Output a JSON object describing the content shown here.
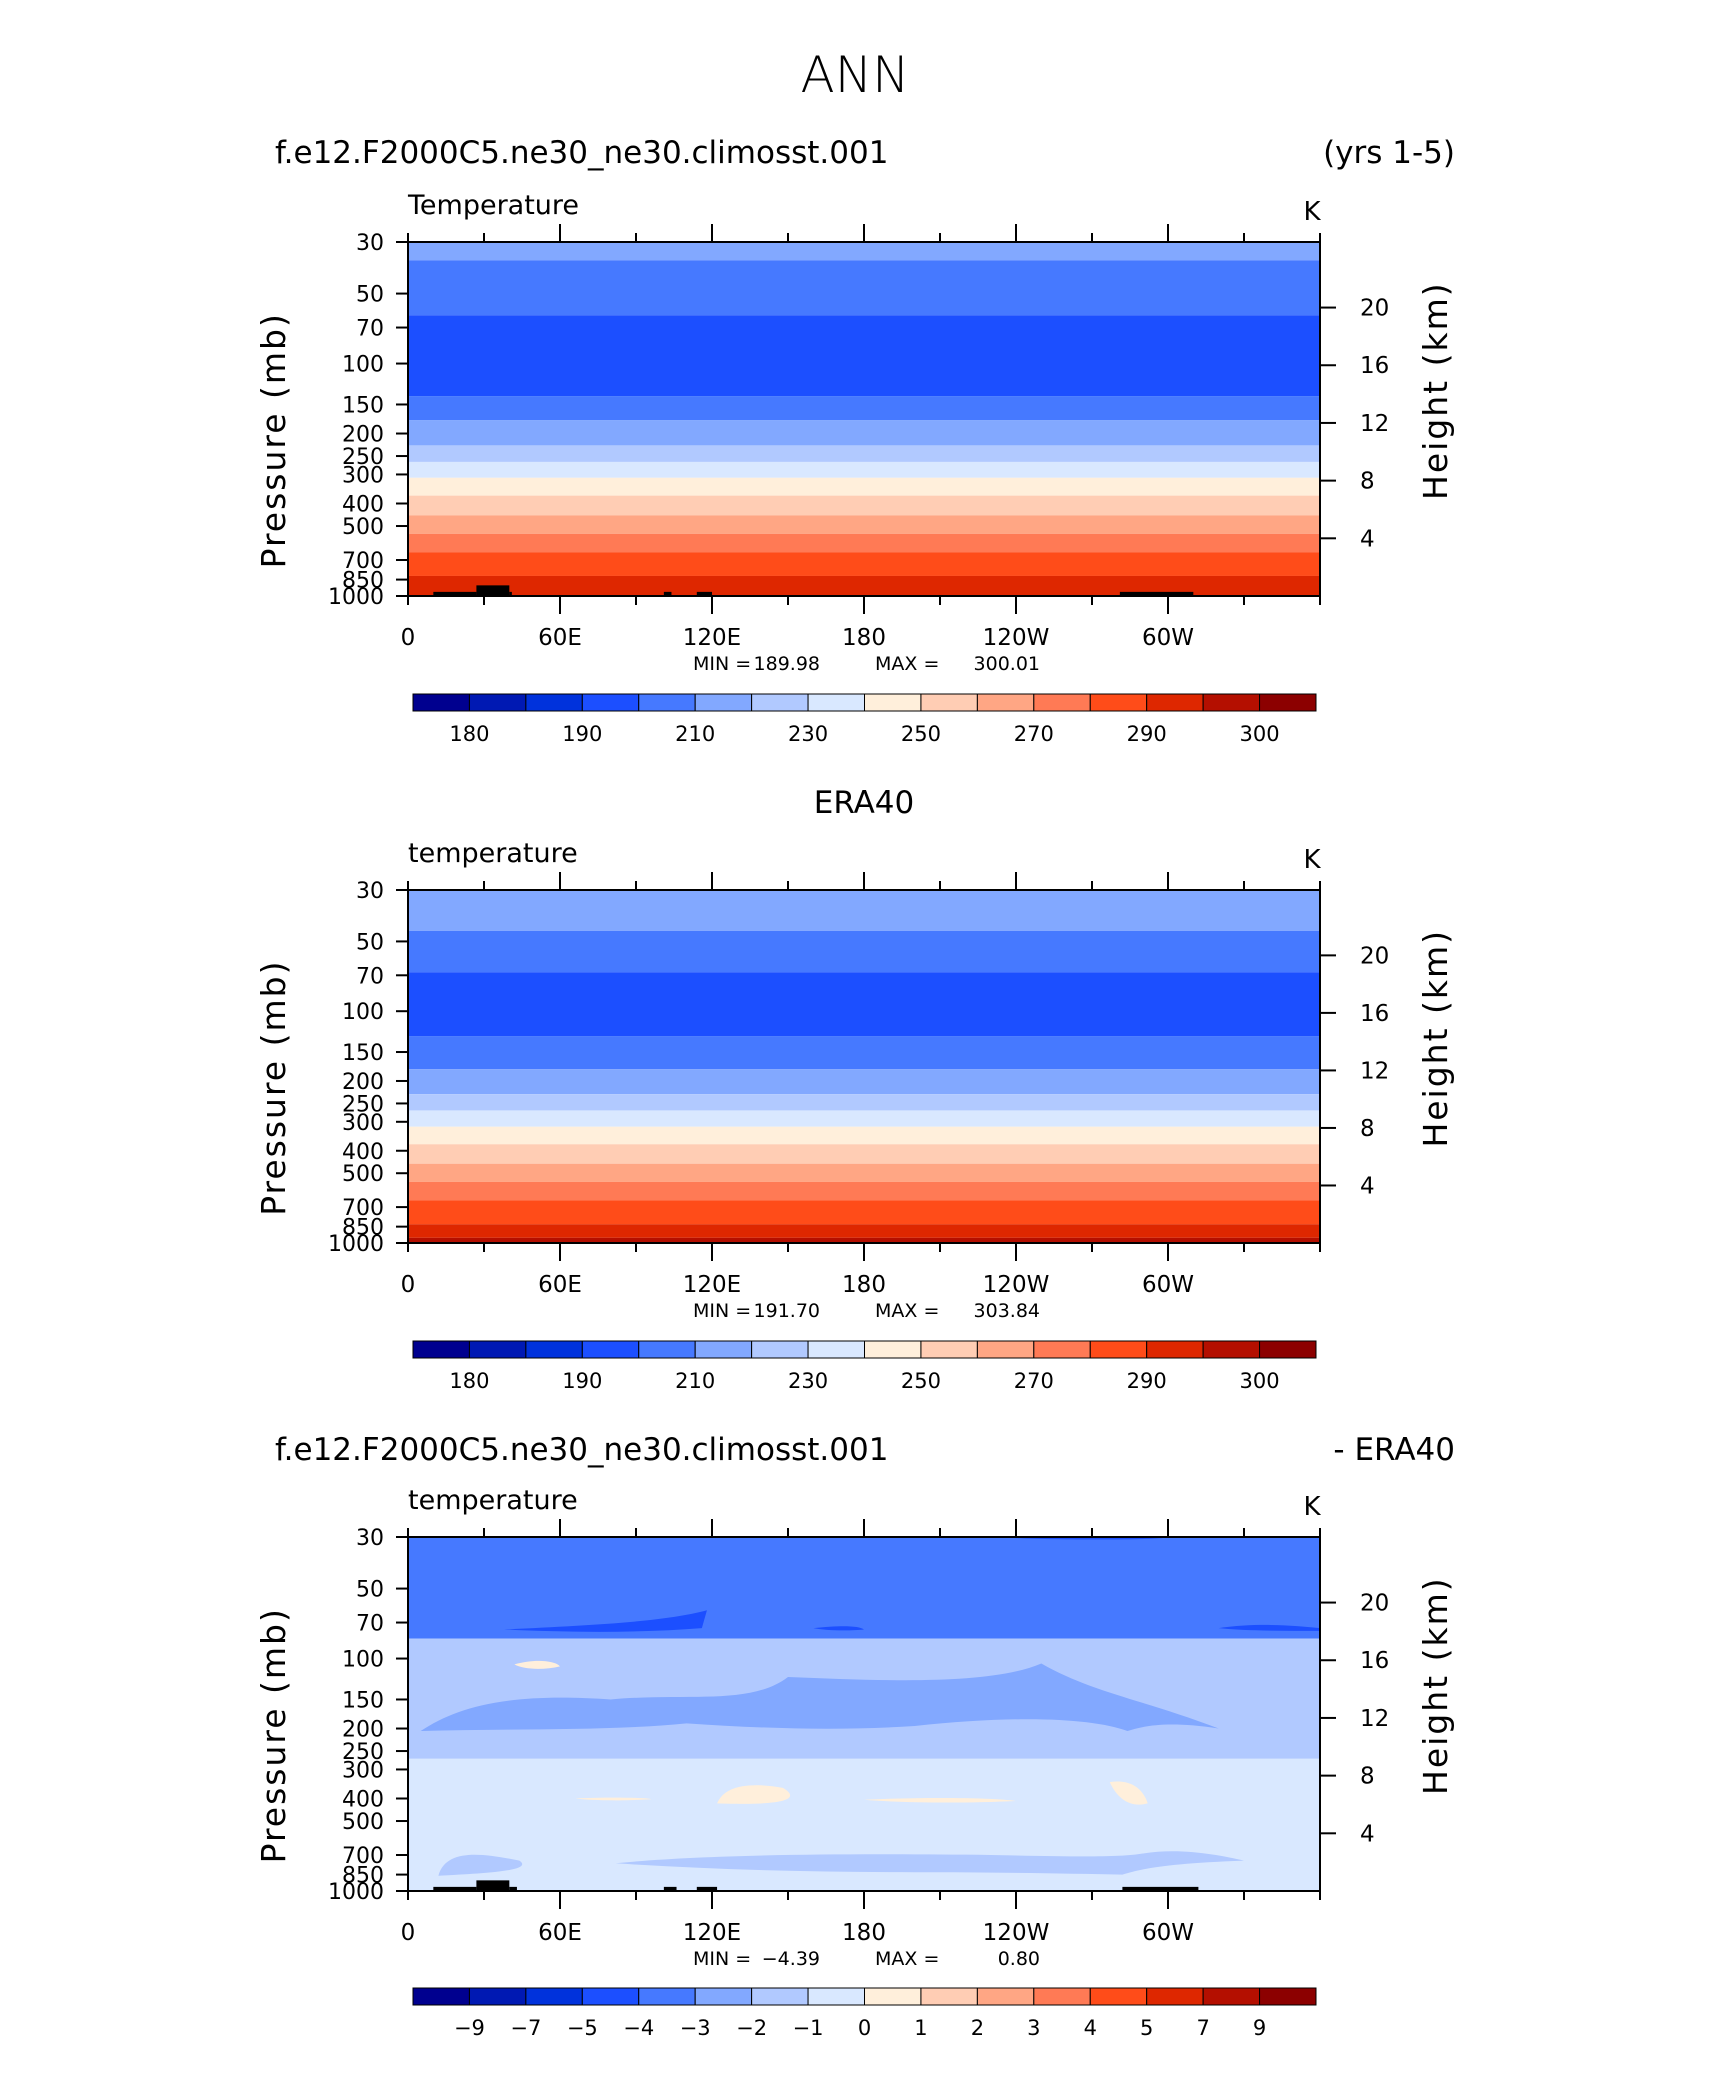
{
  "figure_title": "ANN",
  "colors": {
    "temp_levels": [
      "#00008f",
      "#0019b3",
      "#0032dc",
      "#1c4fff",
      "#4679ff",
      "#82a8ff",
      "#b1c9ff",
      "#d9e8ff",
      "#ffefdb",
      "#ffcdb4",
      "#ffa684",
      "#ff7a55",
      "#ff4c19",
      "#de2700",
      "#b40f00",
      "#8c0000"
    ],
    "diff_levels": [
      "#00008f",
      "#0019b3",
      "#0032dc",
      "#1c4fff",
      "#4679ff",
      "#82a8ff",
      "#b1c9ff",
      "#d9e8ff",
      "#ffefdb",
      "#ffcdb4",
      "#ffa684",
      "#ff7a55",
      "#ff4c19",
      "#de2700",
      "#b40f00",
      "#8c0000"
    ],
    "topography": "#000000"
  },
  "chart_data": [
    {
      "type": "heatmap",
      "header_left": "f.e12.F2000C5.ne30_ne30.climosst.001",
      "header_right": "(yrs 1-5)",
      "header_center": "",
      "variable": "Temperature",
      "units": "K",
      "ylabel": "Pressure  (mb)",
      "ylabel_right": "Height  (km)",
      "xticks": [
        "0",
        "60E",
        "120E",
        "180",
        "120W",
        "60W"
      ],
      "x_values": [
        0,
        60,
        120,
        180,
        240,
        300
      ],
      "xlim": [
        0,
        360
      ],
      "yticks_left": [
        "30",
        "50",
        "70",
        "100",
        "150",
        "200",
        "250",
        "300",
        "400",
        "500",
        "700",
        "850",
        "1000"
      ],
      "p_values": [
        30,
        50,
        70,
        100,
        150,
        200,
        250,
        300,
        400,
        500,
        700,
        850,
        1000
      ],
      "ylim": [
        1000,
        30
      ],
      "yticks_right": [
        "20",
        "16",
        "12",
        "8",
        "4"
      ],
      "z_values": [
        20,
        16,
        12,
        8,
        4
      ],
      "min_label": "MIN =",
      "min_value": "189.98",
      "max_label": "MAX =",
      "max_value": "300.01",
      "colorbar_labels": [
        "180",
        "190",
        "210",
        "230",
        "250",
        "270",
        "290",
        "300"
      ],
      "bands": [
        {
          "p_top": 30,
          "p_bottom": 36,
          "level": 5
        },
        {
          "p_top": 36,
          "p_bottom": 62,
          "level": 4
        },
        {
          "p_top": 62,
          "p_bottom": 138,
          "level": 3
        },
        {
          "p_top": 138,
          "p_bottom": 175,
          "level": 4
        },
        {
          "p_top": 175,
          "p_bottom": 225,
          "level": 5
        },
        {
          "p_top": 225,
          "p_bottom": 265,
          "level": 6
        },
        {
          "p_top": 265,
          "p_bottom": 310,
          "level": 7
        },
        {
          "p_top": 310,
          "p_bottom": 370,
          "level": 8
        },
        {
          "p_top": 370,
          "p_bottom": 450,
          "level": 9
        },
        {
          "p_top": 450,
          "p_bottom": 540,
          "level": 10
        },
        {
          "p_top": 540,
          "p_bottom": 650,
          "level": 11
        },
        {
          "p_top": 650,
          "p_bottom": 820,
          "level": 12
        },
        {
          "p_top": 820,
          "p_bottom": 1000,
          "level": 13
        }
      ],
      "topography": [
        [
          10,
          27,
          960
        ],
        [
          27,
          40,
          900
        ],
        [
          40,
          41,
          960
        ],
        [
          101,
          104,
          960
        ],
        [
          114,
          120,
          960
        ],
        [
          281,
          310,
          960
        ]
      ]
    },
    {
      "type": "heatmap",
      "header_left": "",
      "header_right": "",
      "header_center": "ERA40",
      "variable": "temperature",
      "units": "K",
      "ylabel": "Pressure  (mb)",
      "ylabel_right": "Height  (km)",
      "xticks": [
        "0",
        "60E",
        "120E",
        "180",
        "120W",
        "60W"
      ],
      "x_values": [
        0,
        60,
        120,
        180,
        240,
        300
      ],
      "xlim": [
        0,
        360
      ],
      "yticks_left": [
        "30",
        "50",
        "70",
        "100",
        "150",
        "200",
        "250",
        "300",
        "400",
        "500",
        "700",
        "850",
        "1000"
      ],
      "p_values": [
        30,
        50,
        70,
        100,
        150,
        200,
        250,
        300,
        400,
        500,
        700,
        850,
        1000
      ],
      "ylim": [
        1000,
        30
      ],
      "yticks_right": [
        "20",
        "16",
        "12",
        "8",
        "4"
      ],
      "z_values": [
        20,
        16,
        12,
        8,
        4
      ],
      "min_label": "MIN =",
      "min_value": "191.70",
      "max_label": "MAX =",
      "max_value": "303.84",
      "colorbar_labels": [
        "180",
        "190",
        "210",
        "230",
        "250",
        "270",
        "290",
        "300"
      ],
      "bands": [
        {
          "p_top": 30,
          "p_bottom": 45,
          "level": 5
        },
        {
          "p_top": 45,
          "p_bottom": 68,
          "level": 4
        },
        {
          "p_top": 68,
          "p_bottom": 128,
          "level": 3
        },
        {
          "p_top": 128,
          "p_bottom": 178,
          "level": 4
        },
        {
          "p_top": 178,
          "p_bottom": 228,
          "level": 5
        },
        {
          "p_top": 228,
          "p_bottom": 268,
          "level": 6
        },
        {
          "p_top": 268,
          "p_bottom": 315,
          "level": 7
        },
        {
          "p_top": 315,
          "p_bottom": 375,
          "level": 8
        },
        {
          "p_top": 375,
          "p_bottom": 455,
          "level": 9
        },
        {
          "p_top": 455,
          "p_bottom": 545,
          "level": 10
        },
        {
          "p_top": 545,
          "p_bottom": 655,
          "level": 11
        },
        {
          "p_top": 655,
          "p_bottom": 830,
          "level": 12
        },
        {
          "p_top": 830,
          "p_bottom": 950,
          "level": 13
        },
        {
          "p_top": 950,
          "p_bottom": 1000,
          "level": 14
        }
      ],
      "topography": []
    },
    {
      "type": "heatmap",
      "header_left": "f.e12.F2000C5.ne30_ne30.climosst.001",
      "header_right": "- ERA40",
      "header_center": "",
      "variable": "temperature",
      "units": "K",
      "ylabel": "Pressure  (mb)",
      "ylabel_right": "Height  (km)",
      "xticks": [
        "0",
        "60E",
        "120E",
        "180",
        "120W",
        "60W"
      ],
      "x_values": [
        0,
        60,
        120,
        180,
        240,
        300
      ],
      "xlim": [
        0,
        360
      ],
      "yticks_left": [
        "30",
        "50",
        "70",
        "100",
        "150",
        "200",
        "250",
        "300",
        "400",
        "500",
        "700",
        "850",
        "1000"
      ],
      "p_values": [
        30,
        50,
        70,
        100,
        150,
        200,
        250,
        300,
        400,
        500,
        700,
        850,
        1000
      ],
      "ylim": [
        1000,
        30
      ],
      "yticks_right": [
        "20",
        "16",
        "12",
        "8",
        "4"
      ],
      "z_values": [
        20,
        16,
        12,
        8,
        4
      ],
      "min_label": "MIN =",
      "min_value": "−4.39",
      "max_label": "MAX =",
      "max_value": "0.80",
      "colorbar_labels": [
        "−9",
        "−7",
        "−5",
        "−4",
        "−3",
        "−2",
        "−1",
        "0",
        "1",
        "2",
        "3",
        "4",
        "5",
        "7",
        "9"
      ],
      "bands": [
        {
          "p_top": 30,
          "p_bottom": 82,
          "level": 4
        },
        {
          "p_top": 82,
          "p_bottom": 270,
          "level": 6
        },
        {
          "p_top": 270,
          "p_bottom": 1000,
          "level": 7
        }
      ],
      "topography": [
        [
          10,
          27,
          960
        ],
        [
          27,
          40,
          900
        ],
        [
          40,
          43,
          960
        ],
        [
          101,
          106,
          960
        ],
        [
          114,
          122,
          960
        ],
        [
          282,
          312,
          960
        ]
      ]
    }
  ]
}
